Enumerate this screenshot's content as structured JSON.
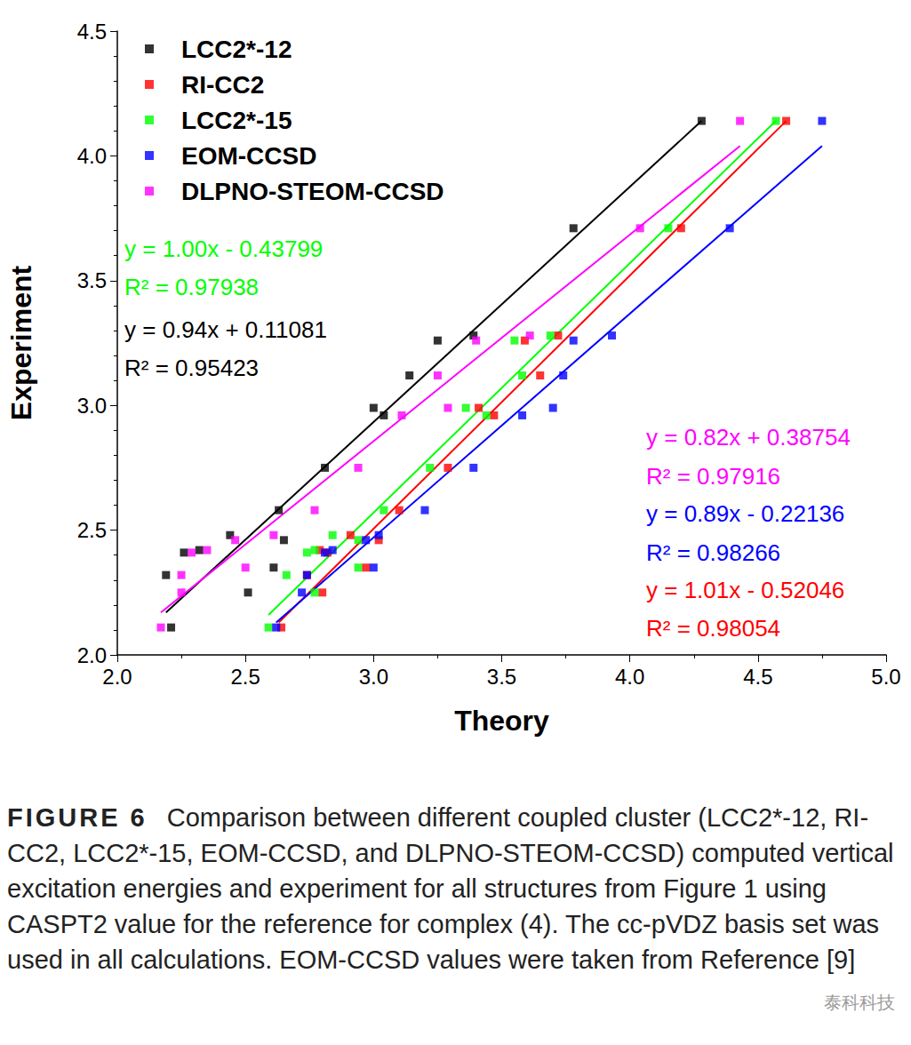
{
  "chart_data": {
    "type": "scatter",
    "x_label": "Theory",
    "y_label": "Experiment",
    "xlim": [
      2.0,
      5.0
    ],
    "xticks": [
      {
        "value": 2,
        "label": "2.0"
      },
      {
        "value": 2.5,
        "label": "2.5"
      },
      {
        "value": 3,
        "label": "3.0"
      },
      {
        "value": 3.5,
        "label": "3.5"
      },
      {
        "value": 4,
        "label": "4.0"
      },
      {
        "value": 4.5,
        "label": "4.5"
      },
      {
        "value": 5,
        "label": "5.0"
      }
    ],
    "ylim": [
      2.0,
      4.5
    ],
    "yticks": [
      {
        "value": 2,
        "label": "2.0"
      },
      {
        "value": 2.5,
        "label": "2.5"
      },
      {
        "value": 3,
        "label": "3.0"
      },
      {
        "value": 3.5,
        "label": "3.5"
      },
      {
        "value": 4,
        "label": "4.0"
      },
      {
        "value": 4.5,
        "label": "4.5"
      }
    ],
    "grid": false,
    "legend": "upper left",
    "marker": "square",
    "series": [
      {
        "name": "LCC2*-12",
        "color": "#000000",
        "x": [
          4.28,
          3.78,
          3.39,
          3.25,
          3.14,
          3.0,
          3.04,
          2.81,
          2.63,
          2.44,
          2.65,
          2.32,
          2.26,
          2.61,
          2.19,
          2.51,
          2.21
        ],
        "values": [
          4.14,
          3.71,
          3.28,
          3.26,
          3.12,
          2.99,
          2.96,
          2.75,
          2.58,
          2.48,
          2.46,
          2.42,
          2.41,
          2.35,
          2.32,
          2.25,
          2.11
        ],
        "fit_line": [
          [
            2.19,
            2.17
          ],
          [
            4.28,
            4.14
          ]
        ]
      },
      {
        "name": "RI-CC2",
        "color": "#ff0000",
        "x": [
          4.61,
          4.2,
          3.72,
          3.59,
          3.65,
          3.41,
          3.47,
          3.29,
          3.1,
          2.91,
          3.02,
          2.79,
          2.82,
          2.97,
          2.74,
          2.8,
          2.64
        ],
        "values": [
          4.14,
          3.71,
          3.28,
          3.26,
          3.12,
          2.99,
          2.96,
          2.75,
          2.58,
          2.48,
          2.46,
          2.42,
          2.41,
          2.35,
          2.32,
          2.25,
          2.11
        ],
        "fit_line": [
          [
            2.63,
            2.13
          ],
          [
            4.61,
            4.14
          ]
        ]
      },
      {
        "name": "LCC2*-15",
        "color": "#00ff00",
        "x": [
          4.57,
          4.15,
          3.69,
          3.55,
          3.58,
          3.36,
          3.44,
          3.22,
          3.04,
          2.84,
          2.94,
          2.77,
          2.74,
          2.94,
          2.66,
          2.77,
          2.59
        ],
        "values": [
          4.14,
          3.71,
          3.28,
          3.26,
          3.12,
          2.99,
          2.96,
          2.75,
          2.58,
          2.48,
          2.46,
          2.42,
          2.41,
          2.35,
          2.32,
          2.25,
          2.11
        ],
        "fit_line": [
          [
            2.59,
            2.16
          ],
          [
            4.57,
            4.14
          ]
        ]
      },
      {
        "name": "EOM-CCSD",
        "color": "#0000ff",
        "x": [
          4.75,
          4.39,
          3.93,
          3.78,
          3.74,
          3.7,
          3.58,
          3.39,
          3.2,
          3.02,
          2.97,
          2.84,
          2.81,
          3.0,
          2.74,
          2.72,
          2.62
        ],
        "values": [
          4.14,
          3.71,
          3.28,
          3.26,
          3.12,
          2.99,
          2.96,
          2.75,
          2.58,
          2.48,
          2.46,
          2.42,
          2.41,
          2.35,
          2.32,
          2.25,
          2.11
        ],
        "fit_line": [
          [
            2.62,
            2.13
          ],
          [
            4.75,
            4.04
          ]
        ]
      },
      {
        "name": "DLPNO-STEOM-CCSD",
        "color": "#ff00ff",
        "x": [
          4.43,
          4.04,
          3.61,
          3.4,
          3.25,
          3.29,
          3.11,
          2.94,
          2.77,
          2.61,
          2.46,
          2.35,
          2.29,
          2.5,
          2.25,
          2.25,
          2.17
        ],
        "values": [
          4.14,
          3.71,
          3.28,
          3.26,
          3.12,
          2.99,
          2.96,
          2.75,
          2.58,
          2.48,
          2.46,
          2.42,
          2.41,
          2.35,
          2.32,
          2.25,
          2.11
        ],
        "fit_line": [
          [
            2.17,
            2.17
          ],
          [
            4.43,
            4.04
          ]
        ]
      }
    ],
    "annotations": [
      {
        "text": "y = 1.00x - 0.43799",
        "series": "LCC2*-15"
      },
      {
        "text": "R² = 0.97938",
        "series": "LCC2*-15"
      },
      {
        "text": "y = 0.94x + 0.11081",
        "series": "LCC2*-12"
      },
      {
        "text": "R² = 0.95423",
        "series": "LCC2*-12"
      },
      {
        "text": "y = 0.82x + 0.38754",
        "series": "DLPNO-STEOM-CCSD"
      },
      {
        "text": "R² = 0.97916",
        "series": "DLPNO-STEOM-CCSD"
      },
      {
        "text": "y = 0.89x - 0.22136",
        "series": "EOM-CCSD"
      },
      {
        "text": "R² = 0.98266",
        "series": "EOM-CCSD"
      },
      {
        "text": "y = 1.01x - 0.52046",
        "series": "RI-CC2"
      },
      {
        "text": "R² = 0.98054",
        "series": "RI-CC2"
      }
    ],
    "caption_label": "FIGURE 6",
    "caption": "Comparison between different coupled cluster (LCC2*-12, RI-CC2, LCC2*-15, EOM-CCSD, and DLPNO-STEOM-CCSD) computed vertical excitation energies and experiment for all structures from Figure 1 using CASPT2 value for the reference for complex (4). The cc-pVDZ basis set was used in all calculations. EOM-CCSD values were taken from Reference [9]",
    "watermark": "泰科科技"
  }
}
